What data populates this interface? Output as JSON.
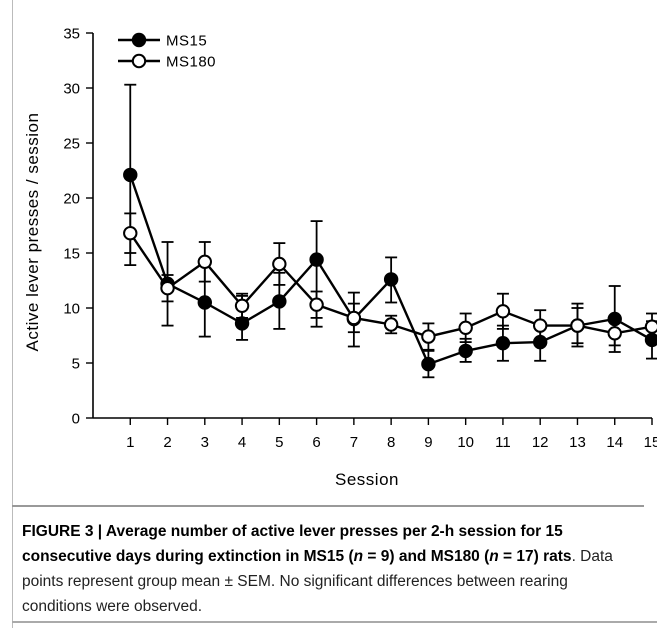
{
  "chart_data": {
    "type": "line",
    "ylabel": "Active lever presses / session",
    "xlabel": "Session",
    "x": [
      1,
      2,
      3,
      4,
      5,
      6,
      7,
      8,
      9,
      10,
      11,
      12,
      13,
      14,
      15
    ],
    "xlim": [
      0,
      15
    ],
    "ylim": [
      0,
      35
    ],
    "yticks": [
      0,
      5,
      10,
      15,
      20,
      25,
      30,
      35
    ],
    "grid": false,
    "legend_position": "top-left",
    "series": [
      {
        "name": "MS15",
        "marker": "filled-circle",
        "color": "#000000",
        "values": [
          22.1,
          12.2,
          10.5,
          8.6,
          10.6,
          14.4,
          9.0,
          12.6,
          4.9,
          6.1,
          6.8,
          6.9,
          8.4,
          9.0,
          7.1
        ],
        "err_upper": [
          30.3,
          16.0,
          14.3,
          11.1,
          13.2,
          17.9,
          11.4,
          14.6,
          6.1,
          7.2,
          8.4,
          8.6,
          10.4,
          12.0,
          8.8
        ],
        "err_lower": [
          13.9,
          8.4,
          7.4,
          7.1,
          8.1,
          8.3,
          6.5,
          10.5,
          3.7,
          5.1,
          5.2,
          5.2,
          6.5,
          6.0,
          5.4
        ]
      },
      {
        "name": "MS180",
        "marker": "open-circle",
        "color": "#000000",
        "values": [
          16.8,
          11.8,
          14.2,
          10.2,
          14.0,
          10.3,
          9.1,
          8.5,
          7.4,
          8.2,
          9.7,
          8.4,
          8.4,
          7.7,
          8.3
        ],
        "err_upper": [
          18.6,
          13.0,
          16.0,
          11.3,
          15.9,
          11.5,
          10.4,
          9.3,
          8.6,
          9.5,
          11.3,
          9.8,
          10.0,
          8.8,
          9.5
        ],
        "err_lower": [
          15.0,
          10.6,
          12.4,
          9.1,
          12.1,
          9.1,
          7.8,
          7.7,
          6.2,
          6.9,
          8.1,
          7.0,
          6.8,
          6.6,
          7.1
        ]
      }
    ]
  },
  "caption": {
    "lead": "FIGURE 3 | Average number of active lever presses per 2-h session for 15 consecutive days during extinction in MS15 (",
    "n1": "n",
    "eq1": " = 9) and MS180 (",
    "n2": "n",
    "eq2": " = 17) rats",
    "rest": ". Data points represent group mean ± SEM. No significant differences between rearing conditions were observed."
  }
}
